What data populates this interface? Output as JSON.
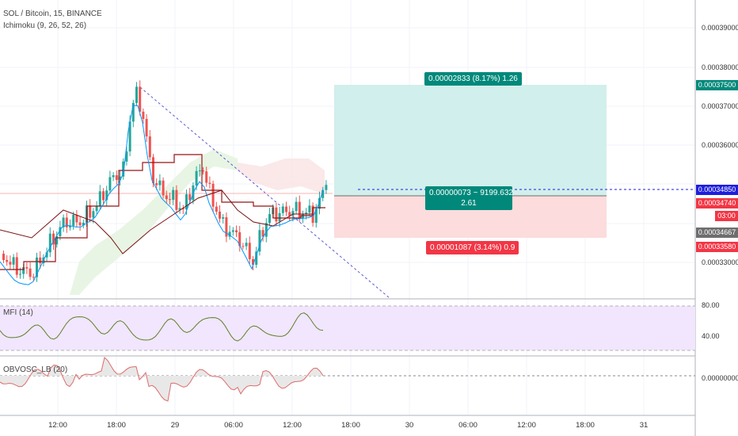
{
  "header": {
    "symbol_line": "SOL / Bitcoin, 15, BINANCE",
    "indicator_line": "Ichimoku (9, 26, 52, 26)"
  },
  "panes": {
    "mfi_label": "MFI (14)",
    "mfi_upper": "80.00",
    "mfi_lower": "40.00",
    "obv_label": "OBVOSC_LB (20)",
    "obv_zero": "0.00000000"
  },
  "price_axis": [
    "0.00039000",
    "0.00038000",
    "0.00037000",
    "0.00036000",
    "0.00033000"
  ],
  "price_tags": {
    "target": "0.00037500",
    "current": "0.00034850",
    "last": "0.00034740",
    "countdown": "03:00",
    "entry": "0.00034667",
    "stop": "0.00033580"
  },
  "time_axis": [
    "12:00",
    "18:00",
    "29",
    "06:00",
    "12:00",
    "18:00",
    "30",
    "06:00",
    "12:00",
    "18:00",
    "31"
  ],
  "position": {
    "target_label": "0.00002833 (8.17%) 1.26",
    "center_label": "0.00000073 ~ 9199.632",
    "center_label_2": "2.61",
    "stop_label": "0.00001087 (3.14%) 0.9"
  },
  "colors": {
    "up_candle": "#26a69a",
    "down_candle": "#ef5350",
    "kijun": "#991515",
    "tenkan": "#0496ff",
    "profit_zone": "#d1efec",
    "loss_zone": "#fcdcdc",
    "mfi_band": "#f1e6fd",
    "target_tag": "#00897b",
    "current_tag": "#1e1ede",
    "stop_tag": "#f23645"
  }
}
